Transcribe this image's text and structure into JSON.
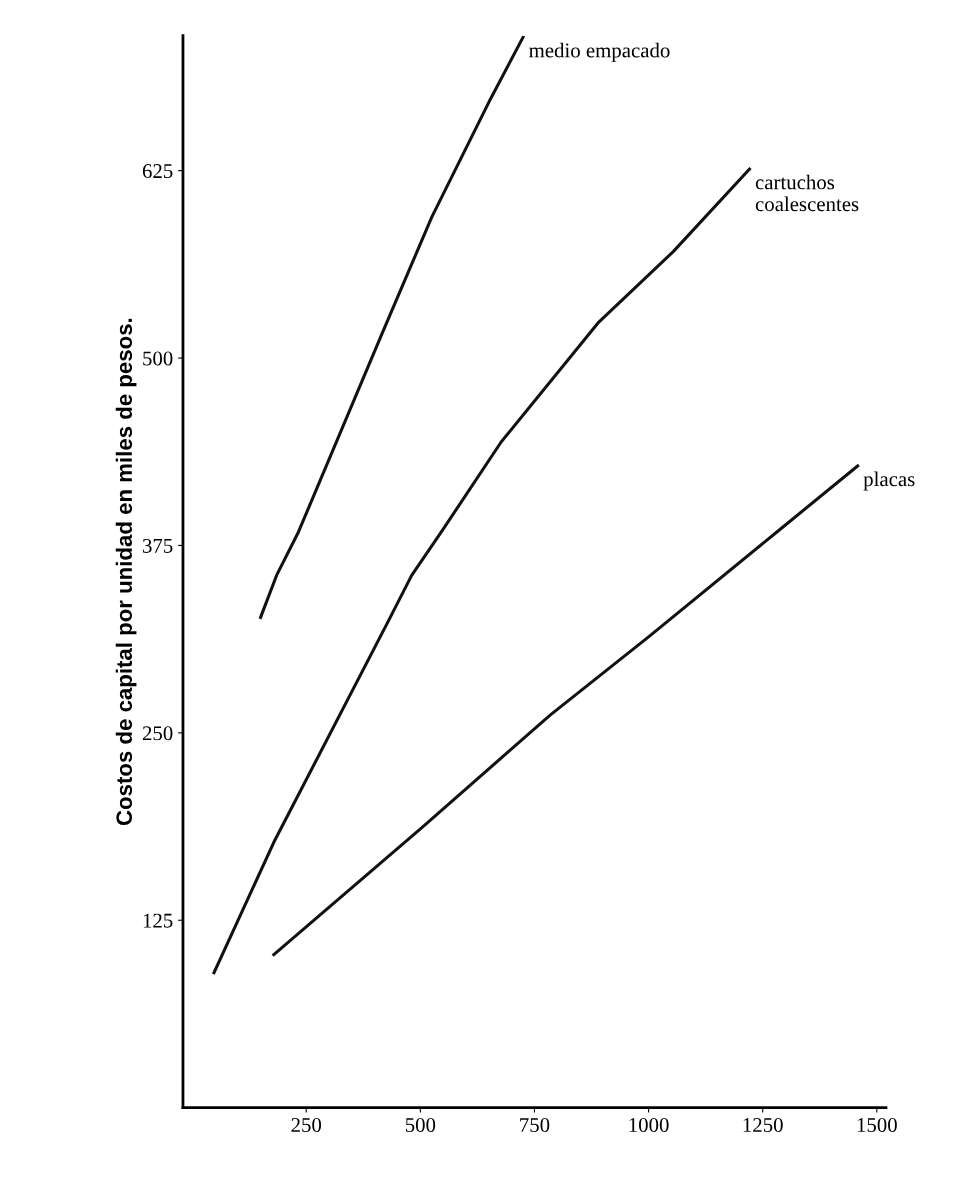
{
  "chart_data": {
    "type": "line",
    "ylabel": "Costos de capital por unidad en miles de pesos.",
    "xlim": [
      -20,
      1520
    ],
    "ylim": [
      0,
      715
    ],
    "xticks": [
      250,
      500,
      750,
      1000,
      1250,
      1500
    ],
    "yticks": [
      125,
      250,
      375,
      500,
      625
    ],
    "grid": false,
    "legend": false,
    "marker": "none",
    "line_style": "solid",
    "series": [
      {
        "name": "medio empacado",
        "color": "#111111",
        "x": [
          150,
          185,
          233,
          417,
          525,
          654,
          725
        ],
        "values": [
          327,
          355,
          384,
          517,
          594,
          673,
          714
        ]
      },
      {
        "name": "cartuchos\ncoalescentes",
        "color": "#111111",
        "x": [
          48,
          179,
          429,
          481,
          546,
          677,
          891,
          1054,
          1221
        ],
        "values": [
          90,
          177,
          324,
          355,
          384,
          444,
          524,
          571,
          626
        ]
      },
      {
        "name": "placas",
        "color": "#111111",
        "x": [
          179,
          504,
          785,
          1000,
          1281,
          1458
        ],
        "values": [
          102,
          187,
          262,
          314,
          384,
          428
        ]
      }
    ]
  }
}
